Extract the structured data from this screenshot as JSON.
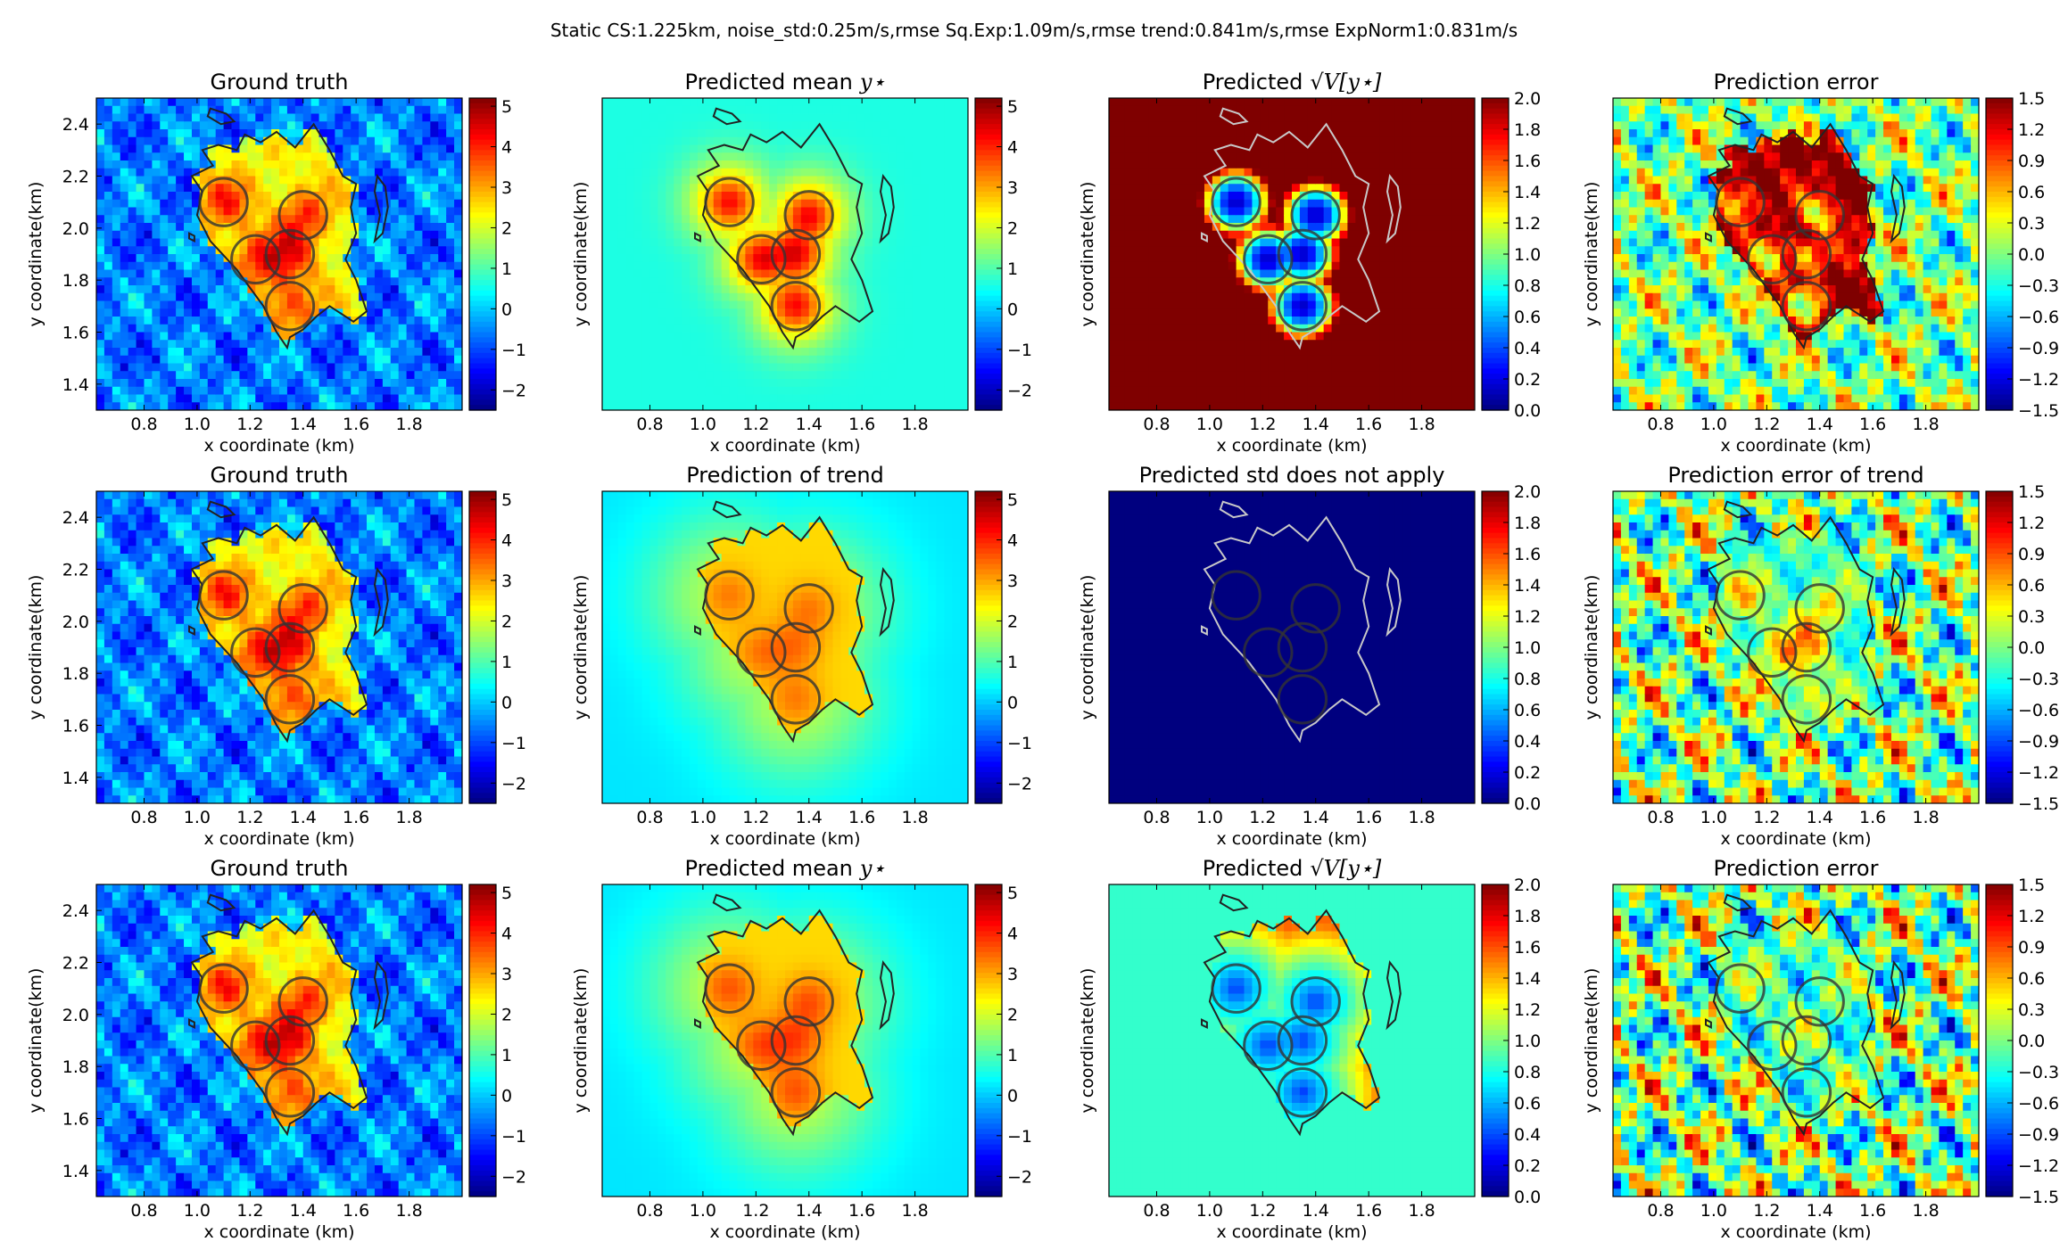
{
  "figure": {
    "title": "Static CS:1.225km, noise_std:0.25m/s,rmse Sq.Exp:1.09m/s,rmse trend:0.841m/s,rmse ExpNorm1:0.831m/s"
  },
  "colors": {
    "jet": [
      "#00007f",
      "#0000ff",
      "#007fff",
      "#00ffff",
      "#7fff7f",
      "#ffff00",
      "#ff7f00",
      "#ff0000",
      "#7f0000"
    ],
    "outline_on_dark": "#c8c8c8",
    "outline": "#222222",
    "circle": "#333333"
  },
  "chart_data": [
    {
      "id": "r1c1",
      "type": "heatmap",
      "kind": "truth",
      "title": "Ground truth",
      "title_math": "",
      "xlabel": "x coordinate (km)",
      "ylabel": "y coordinate(km)",
      "xlim": [
        0.62,
        2.0
      ],
      "ylim": [
        1.3,
        2.5
      ],
      "xticks": [
        0.8,
        1.0,
        1.2,
        1.4,
        1.6,
        1.8
      ],
      "yticks": [
        1.4,
        1.6,
        1.8,
        2.0,
        2.2,
        2.4
      ],
      "colorbar": {
        "vmin": -2.5,
        "vmax": 5.2,
        "ticks": [
          -2,
          -1,
          0,
          1,
          2,
          3,
          4,
          5
        ]
      }
    },
    {
      "id": "r1c2",
      "type": "heatmap",
      "kind": "gp_mean",
      "title": "Predicted mean",
      "title_math": "y⋆",
      "xlabel": "x coordinate (km)",
      "ylabel": "y coordinate(km)",
      "xlim": [
        0.62,
        2.0
      ],
      "ylim": [
        1.3,
        2.5
      ],
      "xticks": [
        0.8,
        1.0,
        1.2,
        1.4,
        1.6,
        1.8
      ],
      "yticks": [],
      "colorbar": {
        "vmin": -2.5,
        "vmax": 5.2,
        "ticks": [
          -2,
          -1,
          0,
          1,
          2,
          3,
          4,
          5
        ]
      }
    },
    {
      "id": "r1c3",
      "type": "heatmap",
      "kind": "gp_std",
      "title": "Predicted",
      "title_math": "√V[y⋆]",
      "xlabel": "x coordinate (km)",
      "ylabel": "y coordinate(km)",
      "xlim": [
        0.62,
        2.0
      ],
      "ylim": [
        1.3,
        2.5
      ],
      "xticks": [
        0.8,
        1.0,
        1.2,
        1.4,
        1.6,
        1.8
      ],
      "yticks": [],
      "colorbar": {
        "vmin": 0.0,
        "vmax": 2.0,
        "ticks": [
          0.0,
          0.2,
          0.4,
          0.6,
          0.8,
          1.0,
          1.2,
          1.4,
          1.6,
          1.8,
          2.0
        ]
      }
    },
    {
      "id": "r1c4",
      "type": "heatmap",
      "kind": "error1",
      "title": "Prediction error",
      "title_math": "",
      "xlabel": "x coordinate (km)",
      "ylabel": "y coordinate(km)",
      "xlim": [
        0.62,
        2.0
      ],
      "ylim": [
        1.3,
        2.5
      ],
      "xticks": [
        0.8,
        1.0,
        1.2,
        1.4,
        1.6,
        1.8
      ],
      "yticks": [],
      "colorbar": {
        "vmin": -1.5,
        "vmax": 1.5,
        "ticks": [
          -1.5,
          -1.2,
          -0.9,
          -0.6,
          -0.3,
          0.0,
          0.3,
          0.6,
          0.9,
          1.2,
          1.5
        ]
      }
    },
    {
      "id": "r2c1",
      "type": "heatmap",
      "kind": "truth",
      "title": "Ground truth",
      "title_math": "",
      "xlabel": "x coordinate (km)",
      "ylabel": "y coordinate(km)",
      "xlim": [
        0.62,
        2.0
      ],
      "ylim": [
        1.3,
        2.5
      ],
      "xticks": [
        0.8,
        1.0,
        1.2,
        1.4,
        1.6,
        1.8
      ],
      "yticks": [
        1.4,
        1.6,
        1.8,
        2.0,
        2.2,
        2.4
      ],
      "colorbar": {
        "vmin": -2.5,
        "vmax": 5.2,
        "ticks": [
          -2,
          -1,
          0,
          1,
          2,
          3,
          4,
          5
        ]
      }
    },
    {
      "id": "r2c2",
      "type": "heatmap",
      "kind": "trend",
      "title": "Prediction of trend",
      "title_math": "",
      "xlabel": "x coordinate (km)",
      "ylabel": "y coordinate(km)",
      "xlim": [
        0.62,
        2.0
      ],
      "ylim": [
        1.3,
        2.5
      ],
      "xticks": [
        0.8,
        1.0,
        1.2,
        1.4,
        1.6,
        1.8
      ],
      "yticks": [],
      "colorbar": {
        "vmin": -2.5,
        "vmax": 5.2,
        "ticks": [
          -2,
          -1,
          0,
          1,
          2,
          3,
          4,
          5
        ]
      }
    },
    {
      "id": "r2c3",
      "type": "heatmap",
      "kind": "na",
      "title": "Predicted std does not apply",
      "title_math": "",
      "xlabel": "x coordinate (km)",
      "ylabel": "y coordinate(km)",
      "xlim": [
        0.62,
        2.0
      ],
      "ylim": [
        1.3,
        2.5
      ],
      "xticks": [
        0.8,
        1.0,
        1.2,
        1.4,
        1.6,
        1.8
      ],
      "yticks": [],
      "colorbar": {
        "vmin": 0.0,
        "vmax": 2.0,
        "ticks": [
          0.0,
          0.2,
          0.4,
          0.6,
          0.8,
          1.0,
          1.2,
          1.4,
          1.6,
          1.8,
          2.0
        ]
      }
    },
    {
      "id": "r2c4",
      "type": "heatmap",
      "kind": "error2",
      "title": "Prediction error of trend",
      "title_math": "",
      "xlabel": "x coordinate (km)",
      "ylabel": "y coordinate(km)",
      "xlim": [
        0.62,
        2.0
      ],
      "ylim": [
        1.3,
        2.5
      ],
      "xticks": [
        0.8,
        1.0,
        1.2,
        1.4,
        1.6,
        1.8
      ],
      "yticks": [],
      "colorbar": {
        "vmin": -1.5,
        "vmax": 1.5,
        "ticks": [
          -1.5,
          -1.2,
          -0.9,
          -0.6,
          -0.3,
          0.0,
          0.3,
          0.6,
          0.9,
          1.2,
          1.5
        ]
      }
    },
    {
      "id": "r3c1",
      "type": "heatmap",
      "kind": "truth",
      "title": "Ground truth",
      "title_math": "",
      "xlabel": "x coordinate (km)",
      "ylabel": "y coordinate(km)",
      "xlim": [
        0.62,
        2.0
      ],
      "ylim": [
        1.3,
        2.5
      ],
      "xticks": [
        0.8,
        1.0,
        1.2,
        1.4,
        1.6,
        1.8
      ],
      "yticks": [
        1.4,
        1.6,
        1.8,
        2.0,
        2.2,
        2.4
      ],
      "colorbar": {
        "vmin": -2.5,
        "vmax": 5.2,
        "ticks": [
          -2,
          -1,
          0,
          1,
          2,
          3,
          4,
          5
        ]
      }
    },
    {
      "id": "r3c2",
      "type": "heatmap",
      "kind": "en_mean",
      "title": "Predicted mean",
      "title_math": "y⋆",
      "xlabel": "x coordinate (km)",
      "ylabel": "y coordinate(km)",
      "xlim": [
        0.62,
        2.0
      ],
      "ylim": [
        1.3,
        2.5
      ],
      "xticks": [
        0.8,
        1.0,
        1.2,
        1.4,
        1.6,
        1.8
      ],
      "yticks": [],
      "colorbar": {
        "vmin": -2.5,
        "vmax": 5.2,
        "ticks": [
          -2,
          -1,
          0,
          1,
          2,
          3,
          4,
          5
        ]
      }
    },
    {
      "id": "r3c3",
      "type": "heatmap",
      "kind": "en_std",
      "title": "Predicted",
      "title_math": "√V[y⋆]",
      "xlabel": "x coordinate (km)",
      "ylabel": "y coordinate(km)",
      "xlim": [
        0.62,
        2.0
      ],
      "ylim": [
        1.3,
        2.5
      ],
      "xticks": [
        0.8,
        1.0,
        1.2,
        1.4,
        1.6,
        1.8
      ],
      "yticks": [],
      "colorbar": {
        "vmin": 0.0,
        "vmax": 2.0,
        "ticks": [
          0.0,
          0.2,
          0.4,
          0.6,
          0.8,
          1.0,
          1.2,
          1.4,
          1.6,
          1.8,
          2.0
        ]
      }
    },
    {
      "id": "r3c4",
      "type": "heatmap",
      "kind": "error3",
      "title": "Prediction error",
      "title_math": "",
      "xlabel": "x coordinate (km)",
      "ylabel": "y coordinate(km)",
      "xlim": [
        0.62,
        2.0
      ],
      "ylim": [
        1.3,
        2.5
      ],
      "xticks": [
        0.8,
        1.0,
        1.2,
        1.4,
        1.6,
        1.8
      ],
      "yticks": [],
      "colorbar": {
        "vmin": -1.5,
        "vmax": 1.5,
        "ticks": [
          -1.5,
          -1.2,
          -0.9,
          -0.6,
          -0.3,
          0.0,
          0.3,
          0.6,
          0.9,
          1.2,
          1.5
        ]
      }
    }
  ],
  "sensor_circles": {
    "radius_km": 0.09,
    "centers": [
      [
        1.1,
        2.1
      ],
      [
        1.4,
        2.05
      ],
      [
        1.22,
        1.88
      ],
      [
        1.35,
        1.9
      ],
      [
        1.35,
        1.7
      ]
    ]
  },
  "island_outline_km": [
    [
      1.08,
      2.32
    ],
    [
      1.15,
      2.3
    ],
    [
      1.18,
      2.36
    ],
    [
      1.24,
      2.33
    ],
    [
      1.3,
      2.37
    ],
    [
      1.37,
      2.31
    ],
    [
      1.44,
      2.4
    ],
    [
      1.5,
      2.3
    ],
    [
      1.55,
      2.2
    ],
    [
      1.6,
      2.17
    ],
    [
      1.58,
      2.08
    ],
    [
      1.6,
      1.98
    ],
    [
      1.56,
      1.88
    ],
    [
      1.6,
      1.8
    ],
    [
      1.64,
      1.68
    ],
    [
      1.59,
      1.64
    ],
    [
      1.5,
      1.7
    ],
    [
      1.45,
      1.66
    ],
    [
      1.4,
      1.61
    ],
    [
      1.35,
      1.58
    ],
    [
      1.34,
      1.54
    ],
    [
      1.3,
      1.6
    ],
    [
      1.25,
      1.7
    ],
    [
      1.2,
      1.77
    ],
    [
      1.15,
      1.84
    ],
    [
      1.05,
      1.95
    ],
    [
      1.0,
      2.05
    ],
    [
      1.02,
      2.14
    ],
    [
      0.98,
      2.2
    ],
    [
      1.06,
      2.24
    ],
    [
      1.02,
      2.3
    ]
  ],
  "islet_outlines_km": [
    [
      [
        1.68,
        2.2
      ],
      [
        1.71,
        2.16
      ],
      [
        1.72,
        2.08
      ],
      [
        1.7,
        1.98
      ],
      [
        1.67,
        1.95
      ],
      [
        1.69,
        2.05
      ],
      [
        1.67,
        2.14
      ]
    ],
    [
      [
        1.05,
        2.46
      ],
      [
        1.11,
        2.44
      ],
      [
        1.14,
        2.41
      ],
      [
        1.09,
        2.4
      ],
      [
        1.04,
        2.43
      ]
    ],
    [
      [
        0.97,
        1.98
      ],
      [
        0.99,
        1.97
      ],
      [
        0.99,
        1.95
      ],
      [
        0.97,
        1.96
      ]
    ]
  ]
}
